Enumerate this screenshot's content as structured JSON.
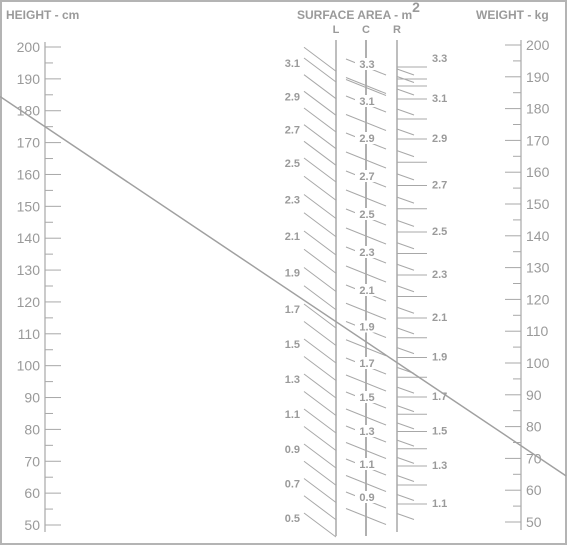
{
  "headers": {
    "height": "HEIGHT - cm",
    "surface": "SURFACE  AREA - m",
    "surface_sup": "2",
    "weight": "WEIGHT - kg"
  },
  "columns": {
    "left": "L",
    "center": "C",
    "right": "R"
  },
  "colors": {
    "ink": "#a8a8a8",
    "frame": "#b4b4b4",
    "line": "#a0a0a0"
  },
  "chart_data": {
    "type": "nomogram",
    "height_cm": {
      "labels": [
        "200",
        "190",
        "180",
        "170",
        "160",
        "150",
        "140",
        "130",
        "120",
        "110",
        "100",
        "90",
        "80",
        "70",
        "60",
        "50"
      ],
      "values": [
        200,
        190,
        180,
        170,
        160,
        150,
        140,
        130,
        120,
        110,
        100,
        90,
        80,
        70,
        60,
        50
      ]
    },
    "weight_kg": {
      "labels": [
        "200",
        "190",
        "180",
        "170",
        "160",
        "150",
        "140",
        "130",
        "120",
        "110",
        "100",
        "90",
        "80",
        "70",
        "60",
        "50"
      ],
      "values": [
        200,
        190,
        180,
        170,
        160,
        150,
        140,
        130,
        120,
        110,
        100,
        90,
        80,
        70,
        60,
        50
      ]
    },
    "surface_area_left": {
      "labels": [
        "3.1",
        "2.9",
        "2.7",
        "2.5",
        "2.3",
        "2.1",
        "1.9",
        "1.7",
        "1.5",
        "1.3",
        "1.1",
        "0.9",
        "0.7",
        "0.5"
      ],
      "values": [
        3.1,
        2.9,
        2.7,
        2.5,
        2.3,
        2.1,
        1.9,
        1.7,
        1.5,
        1.3,
        1.1,
        0.9,
        0.7,
        0.5
      ]
    },
    "surface_area_center": {
      "labels": [
        "3.3",
        "3.1",
        "2.9",
        "2.7",
        "2.5",
        "2.3",
        "2.1",
        "1.9",
        "1.7",
        "1.5",
        "1.3",
        "1.1",
        "0.9"
      ],
      "values": [
        3.3,
        3.1,
        2.9,
        2.7,
        2.5,
        2.3,
        2.1,
        1.9,
        1.7,
        1.5,
        1.3,
        1.1,
        0.9
      ]
    },
    "surface_area_right": {
      "labels": [
        "3.3",
        "3.1",
        "2.9",
        "2.7",
        "2.5",
        "2.3",
        "2.1",
        "1.9",
        "1.7",
        "1.5",
        "1.3",
        "1.1"
      ],
      "values": [
        3.3,
        3.1,
        2.9,
        2.7,
        2.5,
        2.3,
        2.1,
        1.9,
        1.7,
        1.5,
        1.3,
        1.1
      ]
    },
    "reading_line": {
      "height_cm": 175,
      "weight_kg": 74
    }
  }
}
